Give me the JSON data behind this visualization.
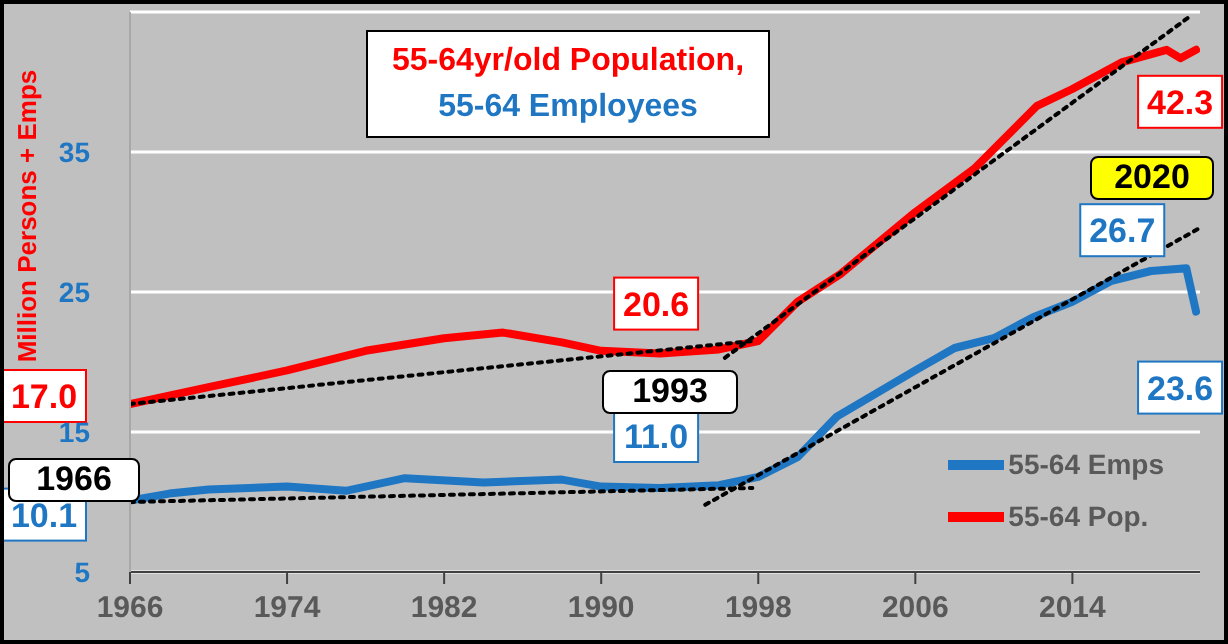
{
  "chart_data": {
    "type": "line",
    "title": "55-64yr/old Population,\n55-64 Employees",
    "ylabel": "Million Persons + Emps",
    "xlim": [
      1966,
      2020.5
    ],
    "xticks": [
      1966,
      1974,
      1982,
      1990,
      1998,
      2006,
      2014
    ],
    "ylim": [
      5,
      45
    ],
    "yticks": [
      5,
      15,
      25,
      35
    ],
    "grid": "y",
    "legend": "bottom right",
    "series": [
      {
        "name": "55-64 Emps",
        "color": "#1f77c4",
        "line_style": "solid",
        "x": [
          1966,
          1968,
          1970,
          1974,
          1977,
          1980,
          1984,
          1988,
          1990,
          1993,
          1996,
          1998,
          2000,
          2002,
          2006,
          2008,
          2010,
          2012,
          2014,
          2016,
          2018,
          2019.8,
          2020.3
        ],
        "values": [
          10.1,
          10.6,
          10.9,
          11.1,
          10.8,
          11.7,
          11.4,
          11.6,
          11.1,
          11.0,
          11.2,
          11.8,
          13.2,
          16.1,
          19.4,
          21.0,
          21.7,
          23.2,
          24.3,
          25.8,
          26.5,
          26.7,
          23.6
        ]
      },
      {
        "name": "55-64 Pop.",
        "color": "#ff0000",
        "line_style": "solid",
        "x": [
          1966,
          1970,
          1974,
          1978,
          1982,
          1985,
          1988,
          1990,
          1993,
          1996,
          1998,
          2000,
          2002.2,
          2006,
          2009,
          2012.2,
          2014,
          2016.5,
          2018.8,
          2019.5,
          2020.3
        ],
        "values": [
          17.0,
          18.2,
          19.4,
          20.8,
          21.7,
          22.1,
          21.4,
          20.8,
          20.6,
          20.9,
          21.5,
          24.3,
          26.3,
          30.7,
          33.8,
          38.3,
          39.5,
          41.4,
          42.3,
          41.7,
          42.3
        ]
      },
      {
        "type": "line",
        "color": "#000000",
        "line_style": "dotted",
        "x": [
          1966,
          1997.7
        ],
        "values": [
          17.0,
          21.5
        ]
      },
      {
        "type": "line",
        "color": "#000000",
        "line_style": "dotted",
        "x": [
          1966,
          1997.7
        ],
        "values": [
          10.0,
          11.0
        ]
      },
      {
        "type": "line",
        "color": "#000000",
        "line_style": "dotted",
        "x": [
          1996.3,
          2020.0
        ],
        "values": [
          20.3,
          44.7
        ]
      },
      {
        "type": "line",
        "color": "#000000",
        "line_style": "dotted",
        "x": [
          1995.3,
          2020.4
        ],
        "values": [
          9.8,
          29.5
        ]
      }
    ],
    "annotations": [
      {
        "text": "17.0",
        "x": 1966,
        "y": 17.0
      },
      {
        "text": "10.1",
        "x": 1966,
        "y": 10.1
      },
      {
        "text": "20.6",
        "x": 1993,
        "y": 20.6
      },
      {
        "text": "11.0",
        "x": 1993,
        "y": 11.0
      },
      {
        "text": "42.3",
        "x": 2020.3,
        "y": 42.3
      },
      {
        "text": "26.7",
        "x": 2019.8,
        "y": 26.7
      },
      {
        "text": "23.6",
        "x": 2020.3,
        "y": 23.6
      },
      "1966",
      "1993",
      "2020"
    ]
  }
}
